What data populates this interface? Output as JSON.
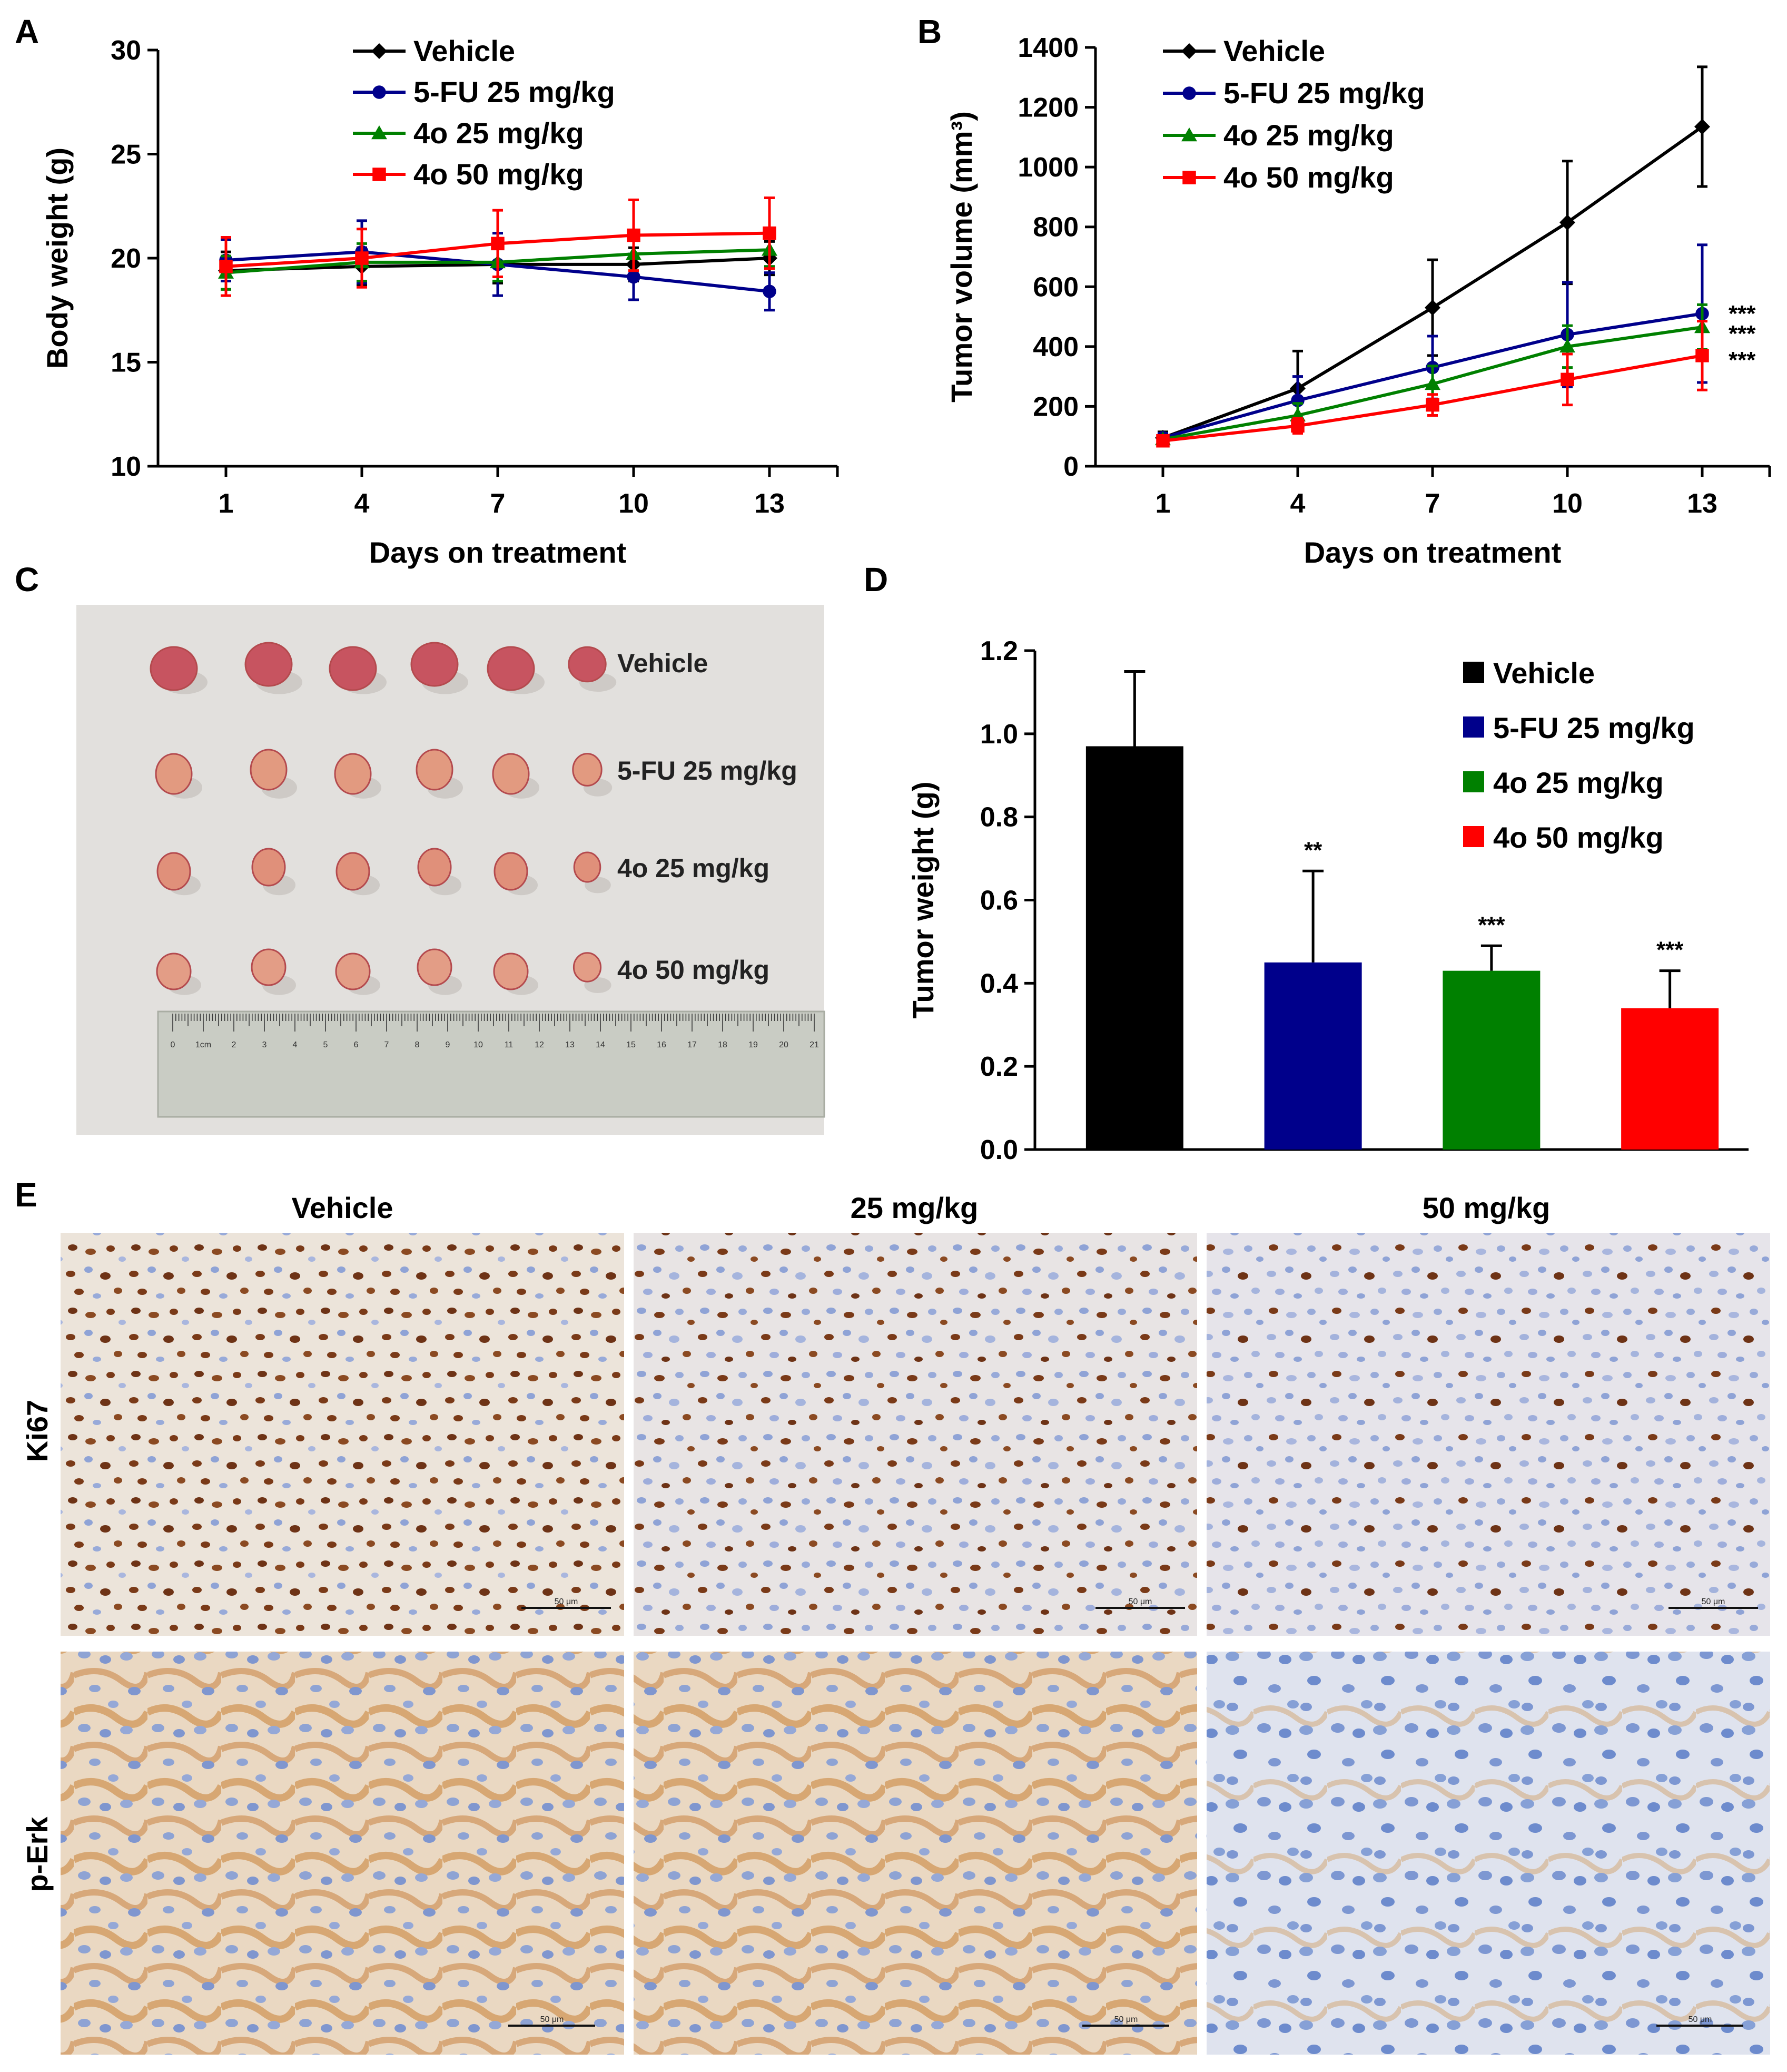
{
  "colors": {
    "vehicle": "#000000",
    "fu25": "#00008B",
    "o25": "#008000",
    "o50": "#FF0000",
    "photo_bg": "#e9e7e5",
    "tumor_dark": "#c9545c",
    "tumor_light": "#e39a82",
    "ruler": "#c2c6bd",
    "tissue_bg": "#ece6df",
    "ki67_stain": "#7a3a18",
    "nucleus_blue": "#8fa3d6",
    "perk_stain": "#d09a5a"
  },
  "panels": {
    "A": "A",
    "B": "B",
    "C": "C",
    "D": "D",
    "E": "E"
  },
  "chart_data": [
    {
      "id": "A",
      "type": "line",
      "xlabel": "Days on treatment",
      "ylabel": "Body weight (g)",
      "x": [
        1,
        4,
        7,
        10,
        13
      ],
      "xlim": [
        -0.5,
        14.5
      ],
      "ylim": [
        10,
        30
      ],
      "yticks": [
        10,
        15,
        20,
        25,
        30
      ],
      "legend_position": "top",
      "series": [
        {
          "name": "Vehicle",
          "color": "#000000",
          "marker": "diamond",
          "values": [
            19.4,
            19.6,
            19.7,
            19.7,
            20.0
          ],
          "err": [
            0.9,
            0.9,
            0.9,
            0.8,
            0.8
          ]
        },
        {
          "name": "5-FU 25 mg/kg",
          "color": "#00008B",
          "marker": "circle",
          "values": [
            19.9,
            20.3,
            19.7,
            19.1,
            18.4
          ],
          "err": [
            1.0,
            1.5,
            1.5,
            1.1,
            0.9
          ]
        },
        {
          "name": "4o 25 mg/kg",
          "color": "#008000",
          "marker": "triangle",
          "values": [
            19.3,
            19.8,
            19.8,
            20.2,
            20.4
          ],
          "err": [
            0.8,
            0.9,
            0.9,
            0.8,
            0.8
          ]
        },
        {
          "name": "4o 50 mg/kg",
          "color": "#FF0000",
          "marker": "square",
          "values": [
            19.6,
            20.0,
            20.7,
            21.1,
            21.2
          ],
          "err": [
            1.4,
            1.4,
            1.6,
            1.7,
            1.7
          ]
        }
      ]
    },
    {
      "id": "B",
      "type": "line",
      "xlabel": "Days on treatment",
      "ylabel": "Tumor volume (mm³)",
      "x": [
        1,
        4,
        7,
        10,
        13
      ],
      "xlim": [
        -0.5,
        14.5
      ],
      "ylim": [
        0,
        1400
      ],
      "yticks": [
        0,
        200,
        400,
        600,
        800,
        1000,
        1200,
        1400
      ],
      "legend_position": "top-left",
      "annotations": [
        "***",
        "***",
        "***"
      ],
      "series": [
        {
          "name": "Vehicle",
          "color": "#000000",
          "marker": "diamond",
          "values": [
            95,
            260,
            530,
            815,
            1135
          ],
          "err": [
            20,
            125,
            160,
            205,
            200
          ]
        },
        {
          "name": "5-FU 25 mg/kg",
          "color": "#00008B",
          "marker": "circle",
          "values": [
            95,
            220,
            330,
            440,
            510
          ],
          "err": [
            15,
            80,
            105,
            175,
            230
          ]
        },
        {
          "name": "4o 25 mg/kg",
          "color": "#008000",
          "marker": "triangle",
          "values": [
            90,
            170,
            275,
            400,
            465
          ],
          "err": [
            10,
            40,
            60,
            70,
            75
          ]
        },
        {
          "name": "4o 50 mg/kg",
          "color": "#FF0000",
          "marker": "square",
          "values": [
            85,
            135,
            205,
            290,
            370
          ],
          "err": [
            10,
            25,
            35,
            85,
            115
          ]
        }
      ]
    },
    {
      "id": "D",
      "type": "bar",
      "xlabel": "",
      "ylabel": "Tumor weight (g)",
      "categories": [
        "Vehicle",
        "5-FU 25 mg/kg",
        "4o 25 mg/kg",
        "4o 50 mg/kg"
      ],
      "values": [
        0.97,
        0.45,
        0.43,
        0.34
      ],
      "err": [
        0.18,
        0.22,
        0.06,
        0.09
      ],
      "significance": [
        "",
        "**",
        "***",
        "***"
      ],
      "colors": [
        "#000000",
        "#00008B",
        "#008000",
        "#FF0000"
      ],
      "ylim": [
        0,
        1.2
      ],
      "yticks": [
        "0.0",
        "0.2",
        "0.4",
        "0.6",
        "0.8",
        "1.0",
        "1.2"
      ],
      "legend_position": "top-right"
    }
  ],
  "photo": {
    "row_labels": [
      "Vehicle",
      "5-FU 25 mg/kg",
      "4o 25 mg/kg",
      "4o 50 mg/kg"
    ],
    "ruler_labels": [
      "0",
      "1cm",
      "2",
      "3",
      "4",
      "5",
      "6",
      "7",
      "8",
      "9",
      "10",
      "11",
      "12",
      "13",
      "14",
      "15",
      "16",
      "17",
      "18",
      "19",
      "20",
      "21"
    ]
  },
  "ihc": {
    "columns": [
      "Vehicle",
      "25 mg/kg",
      "50 mg/kg"
    ],
    "rows": [
      "Ki67",
      "p-Erk"
    ],
    "scale_label": "50 μm"
  }
}
